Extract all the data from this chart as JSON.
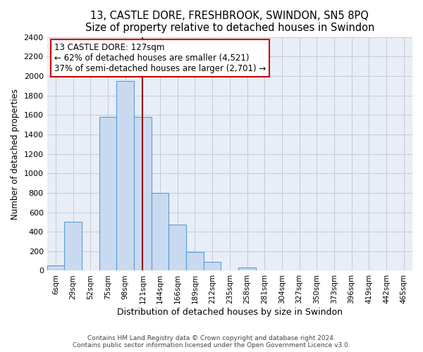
{
  "title": "13, CASTLE DORE, FRESHBROOK, SWINDON, SN5 8PQ",
  "subtitle": "Size of property relative to detached houses in Swindon",
  "xlabel": "Distribution of detached houses by size in Swindon",
  "ylabel": "Number of detached properties",
  "bar_labels": [
    "6sqm",
    "29sqm",
    "52sqm",
    "75sqm",
    "98sqm",
    "121sqm",
    "144sqm",
    "166sqm",
    "189sqm",
    "212sqm",
    "235sqm",
    "258sqm",
    "281sqm",
    "304sqm",
    "327sqm",
    "350sqm",
    "373sqm",
    "396sqm",
    "419sqm",
    "442sqm",
    "465sqm"
  ],
  "bar_heights": [
    55,
    500,
    0,
    1580,
    1950,
    1580,
    800,
    470,
    190,
    90,
    0,
    30,
    0,
    0,
    0,
    0,
    0,
    0,
    0,
    0,
    0
  ],
  "bar_color": "#c9daf0",
  "bar_edge_color": "#5b9bd5",
  "vline_x": 5,
  "vline_color": "#990000",
  "ylim": [
    0,
    2400
  ],
  "yticks": [
    0,
    200,
    400,
    600,
    800,
    1000,
    1200,
    1400,
    1600,
    1800,
    2000,
    2200,
    2400
  ],
  "annotation_title": "13 CASTLE DORE: 127sqm",
  "annotation_line1": "← 62% of detached houses are smaller (4,521)",
  "annotation_line2": "37% of semi-detached houses are larger (2,701) →",
  "annotation_box_color": "#ffffff",
  "annotation_box_edge": "#cc0000",
  "footer_line1": "Contains HM Land Registry data © Crown copyright and database right 2024.",
  "footer_line2": "Contains public sector information licensed under the Open Government Licence v3.0.",
  "bg_color": "#ffffff",
  "plot_bg_color": "#e8eef8",
  "grid_color": "#c8c8d0"
}
